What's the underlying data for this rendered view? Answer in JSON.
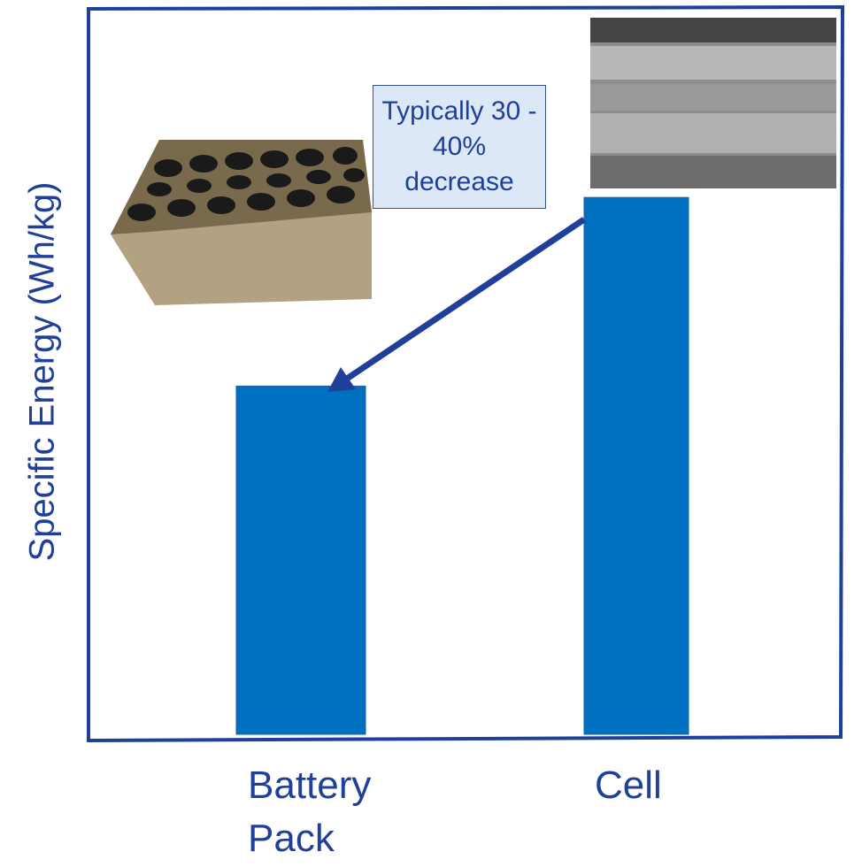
{
  "chart_data": {
    "type": "bar",
    "y_label": "Specific Energy (Wh/kg)",
    "categories": [
      "Battery Pack",
      "Cell"
    ],
    "values": [
      48,
      74
    ],
    "color": "#0070c0",
    "ylim": [
      0,
      100
    ],
    "annotation": "Typically 30 - 40% decrease"
  }
}
